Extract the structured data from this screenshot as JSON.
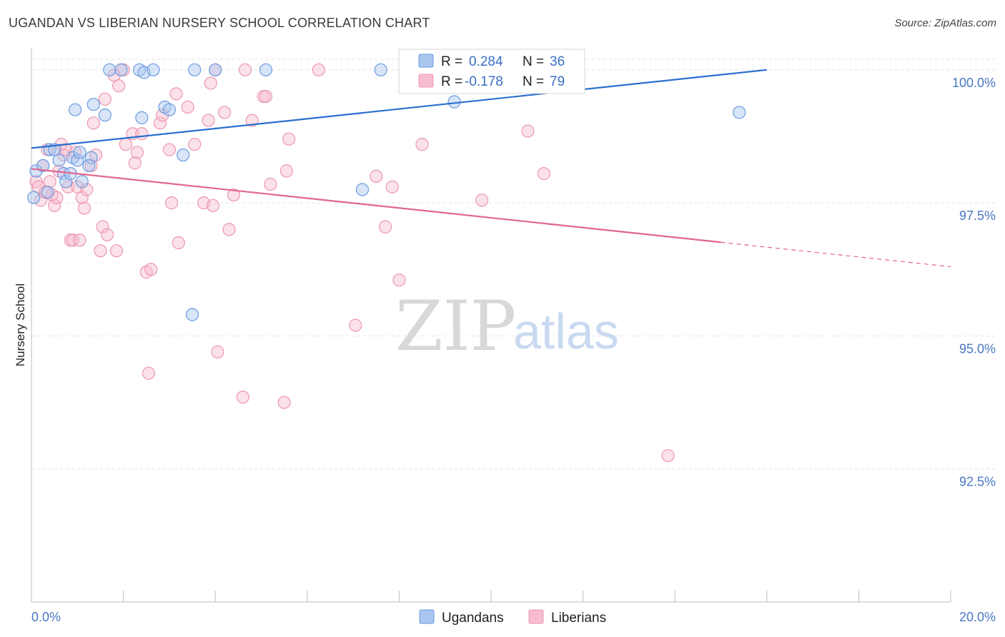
{
  "title": "UGANDAN VS LIBERIAN NURSERY SCHOOL CORRELATION CHART",
  "source": "Source: ZipAtlas.com",
  "watermark": {
    "zip": "ZIP",
    "atlas": "atlas"
  },
  "colors": {
    "ugandan_fill": "#a9c6ef",
    "ugandan_stroke": "#6b9be0",
    "ugandan_line": "#2a6fd0",
    "liberian_fill": "#f7bccd",
    "liberian_stroke": "#ec97b2",
    "liberian_line": "#e2658f",
    "grid": "#e3e3e3",
    "tick_label": "#4a78c2"
  },
  "legend_box": {
    "row1": {
      "r_label": "R = ",
      "r_value": "0.284",
      "n_label": "N = ",
      "n_value": "36"
    },
    "row2": {
      "r_label": "R = ",
      "r_value": "-0.178",
      "n_label": "N = ",
      "n_value": "79"
    }
  },
  "chart_data": {
    "type": "scatter",
    "title": "UGANDAN VS LIBERIAN NURSERY SCHOOL CORRELATION CHART",
    "xlabel": "",
    "ylabel": "Nursery School",
    "xlim": [
      0.0,
      20.0
    ],
    "ylim": [
      90.0,
      100.4
    ],
    "x_tick_labels": [
      "0.0%",
      "20.0%"
    ],
    "y_ticks": [
      92.5,
      95.0,
      97.5,
      100.0
    ],
    "y_tick_labels": [
      "92.5%",
      "95.0%",
      "97.5%",
      "100.0%"
    ],
    "grid": true,
    "legend": [
      "Ugandans",
      "Liberians"
    ],
    "series": [
      {
        "name": "Ugandans",
        "points": [
          [
            0.1,
            98.1
          ],
          [
            0.25,
            98.2
          ],
          [
            0.35,
            97.7
          ],
          [
            0.4,
            98.5
          ],
          [
            0.5,
            98.5
          ],
          [
            0.6,
            98.3
          ],
          [
            0.7,
            98.05
          ],
          [
            0.75,
            97.9
          ],
          [
            0.85,
            98.05
          ],
          [
            0.9,
            98.35
          ],
          [
            0.95,
            99.25
          ],
          [
            1.0,
            98.3
          ],
          [
            1.05,
            98.45
          ],
          [
            1.1,
            97.9
          ],
          [
            1.3,
            98.35
          ],
          [
            1.35,
            99.35
          ],
          [
            1.6,
            99.15
          ],
          [
            1.7,
            100.0
          ],
          [
            1.95,
            100.0
          ],
          [
            2.35,
            100.0
          ],
          [
            2.45,
            99.95
          ],
          [
            2.65,
            100.0
          ],
          [
            2.4,
            99.1
          ],
          [
            2.9,
            99.3
          ],
          [
            3.0,
            99.25
          ],
          [
            3.3,
            98.4
          ],
          [
            3.5,
            95.4
          ],
          [
            3.55,
            100.0
          ],
          [
            4.0,
            100.0
          ],
          [
            5.1,
            100.0
          ],
          [
            7.2,
            97.75
          ],
          [
            7.6,
            100.0
          ],
          [
            9.2,
            99.4
          ],
          [
            15.4,
            99.2
          ],
          [
            0.05,
            97.6
          ],
          [
            1.25,
            98.2
          ]
        ],
        "trend": {
          "x0": 0.0,
          "y0": 98.53,
          "x1": 16.0,
          "y1": 100.0
        }
      },
      {
        "name": "Liberians",
        "points": [
          [
            0.1,
            97.9
          ],
          [
            0.15,
            97.8
          ],
          [
            0.2,
            97.55
          ],
          [
            0.25,
            98.2
          ],
          [
            0.3,
            97.7
          ],
          [
            0.35,
            98.5
          ],
          [
            0.4,
            97.9
          ],
          [
            0.45,
            97.65
          ],
          [
            0.5,
            97.45
          ],
          [
            0.55,
            97.6
          ],
          [
            0.6,
            98.1
          ],
          [
            0.65,
            98.6
          ],
          [
            0.7,
            98.4
          ],
          [
            0.75,
            98.5
          ],
          [
            0.8,
            97.8
          ],
          [
            0.85,
            96.8
          ],
          [
            0.9,
            96.8
          ],
          [
            0.95,
            98.45
          ],
          [
            1.0,
            97.8
          ],
          [
            1.05,
            96.8
          ],
          [
            1.1,
            97.6
          ],
          [
            1.15,
            97.4
          ],
          [
            1.2,
            97.75
          ],
          [
            1.3,
            98.2
          ],
          [
            1.35,
            99.0
          ],
          [
            1.4,
            98.4
          ],
          [
            1.5,
            96.6
          ],
          [
            1.55,
            97.05
          ],
          [
            1.6,
            99.45
          ],
          [
            1.65,
            96.9
          ],
          [
            1.8,
            99.9
          ],
          [
            1.85,
            96.6
          ],
          [
            1.9,
            99.7
          ],
          [
            2.0,
            100.0
          ],
          [
            2.05,
            98.6
          ],
          [
            2.2,
            98.8
          ],
          [
            2.25,
            98.25
          ],
          [
            2.3,
            98.45
          ],
          [
            2.4,
            98.8
          ],
          [
            2.5,
            96.2
          ],
          [
            2.55,
            94.3
          ],
          [
            2.6,
            96.25
          ],
          [
            2.8,
            99.0
          ],
          [
            2.85,
            99.15
          ],
          [
            3.0,
            98.5
          ],
          [
            3.05,
            97.5
          ],
          [
            3.15,
            99.55
          ],
          [
            3.2,
            96.75
          ],
          [
            3.4,
            99.3
          ],
          [
            3.55,
            98.6
          ],
          [
            3.75,
            97.5
          ],
          [
            3.85,
            99.05
          ],
          [
            3.9,
            99.75
          ],
          [
            3.95,
            97.45
          ],
          [
            4.0,
            100.0
          ],
          [
            4.05,
            94.7
          ],
          [
            4.2,
            99.2
          ],
          [
            4.3,
            97.0
          ],
          [
            4.4,
            97.65
          ],
          [
            4.6,
            93.85
          ],
          [
            4.65,
            100.0
          ],
          [
            4.8,
            99.05
          ],
          [
            5.05,
            99.5
          ],
          [
            5.1,
            99.5
          ],
          [
            5.2,
            97.85
          ],
          [
            5.5,
            93.75
          ],
          [
            5.55,
            98.1
          ],
          [
            5.6,
            98.7
          ],
          [
            6.25,
            100.0
          ],
          [
            7.05,
            95.2
          ],
          [
            7.5,
            98.0
          ],
          [
            7.7,
            97.05
          ],
          [
            7.85,
            97.8
          ],
          [
            8.0,
            96.05
          ],
          [
            8.5,
            98.6
          ],
          [
            9.8,
            97.55
          ],
          [
            10.8,
            98.85
          ],
          [
            11.15,
            98.05
          ],
          [
            13.85,
            92.75
          ]
        ],
        "trend": {
          "x0": 0.0,
          "y0": 98.14,
          "x1": 15.0,
          "y1": 96.76,
          "dash_x1": 20.0,
          "dash_y1": 96.3
        }
      }
    ]
  }
}
